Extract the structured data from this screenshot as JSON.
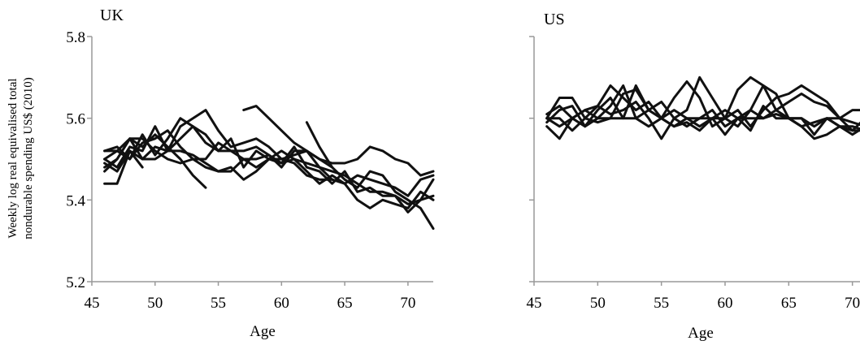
{
  "chart_data": [
    {
      "type": "line",
      "title": "UK",
      "xlabel": "Age",
      "ylabel": [
        "Weekly log real equivalised total",
        "nondurable spending US$ (2010)"
      ],
      "xlim": [
        45,
        72
      ],
      "ylim": [
        5.2,
        5.8
      ],
      "xticks": [
        45,
        50,
        55,
        60,
        65,
        70
      ],
      "yticks": [
        5.2,
        5.4,
        5.6,
        5.8
      ],
      "ytick_labels": [
        "5.2",
        "5.4",
        "5.6",
        "5.8"
      ],
      "grid": false,
      "series": [
        {
          "x": [
            46,
            47,
            48,
            49,
            50,
            51,
            52,
            53,
            54,
            55,
            56,
            57,
            58,
            59,
            60,
            61,
            62,
            63,
            64,
            65,
            66,
            67,
            68,
            69,
            70,
            71,
            72
          ],
          "y": [
            5.52,
            5.53,
            5.5,
            5.56,
            5.51,
            5.55,
            5.6,
            5.58,
            5.54,
            5.52,
            5.52,
            5.5,
            5.48,
            5.5,
            5.52,
            5.5,
            5.47,
            5.44,
            5.46,
            5.44,
            5.4,
            5.38,
            5.4,
            5.39,
            5.38,
            5.42,
            5.4
          ]
        },
        {
          "x": [
            46,
            47,
            48,
            49,
            50,
            51,
            52,
            53,
            54,
            55,
            56,
            57,
            58,
            59,
            60,
            61,
            62,
            63,
            64,
            65,
            66,
            67,
            68,
            69,
            70,
            71,
            72
          ],
          "y": [
            5.5,
            5.48,
            5.53,
            5.52,
            5.58,
            5.52,
            5.58,
            5.6,
            5.62,
            5.57,
            5.53,
            5.54,
            5.55,
            5.53,
            5.5,
            5.51,
            5.52,
            5.5,
            5.48,
            5.45,
            5.43,
            5.47,
            5.46,
            5.42,
            5.4,
            5.38,
            5.33
          ]
        },
        {
          "x": [
            46,
            47,
            48,
            49,
            50,
            51,
            52,
            53,
            54,
            55,
            56,
            57,
            58,
            59,
            60,
            61,
            62,
            63,
            64,
            65,
            66,
            67,
            68,
            69,
            70,
            71,
            72
          ],
          "y": [
            5.47,
            5.5,
            5.55,
            5.5,
            5.53,
            5.52,
            5.55,
            5.58,
            5.56,
            5.52,
            5.55,
            5.48,
            5.52,
            5.5,
            5.49,
            5.53,
            5.48,
            5.47,
            5.44,
            5.47,
            5.42,
            5.43,
            5.41,
            5.41,
            5.37,
            5.4,
            5.45
          ]
        },
        {
          "x": [
            46,
            47,
            48,
            49,
            50,
            51,
            52,
            53,
            54,
            55,
            56,
            57,
            58,
            59,
            60,
            61,
            62,
            63,
            64,
            65,
            66,
            67,
            68,
            69,
            70,
            71,
            72
          ],
          "y": [
            5.5,
            5.52,
            5.5,
            5.54,
            5.55,
            5.57,
            5.53,
            5.5,
            5.5,
            5.54,
            5.52,
            5.52,
            5.53,
            5.51,
            5.48,
            5.52,
            5.52,
            5.5,
            5.49,
            5.49,
            5.5,
            5.53,
            5.52,
            5.5,
            5.49,
            5.46,
            5.47
          ]
        },
        {
          "x": [
            46,
            47,
            48,
            49,
            50,
            51,
            52,
            53,
            54,
            55,
            56,
            57,
            58,
            59,
            60,
            61,
            62,
            63,
            64,
            65,
            66,
            67,
            68,
            69,
            70,
            71,
            72
          ],
          "y": [
            5.49,
            5.47,
            5.52,
            5.5,
            5.5,
            5.52,
            5.52,
            5.51,
            5.49,
            5.47,
            5.48,
            5.45,
            5.47,
            5.5,
            5.5,
            5.49,
            5.46,
            5.45,
            5.45,
            5.44,
            5.46,
            5.45,
            5.44,
            5.43,
            5.41,
            5.45,
            5.46
          ]
        },
        {
          "x": [
            46,
            47,
            48,
            49,
            50,
            51,
            52,
            53,
            54,
            55,
            56,
            57,
            58,
            59,
            60,
            61,
            62,
            63,
            64,
            65,
            66,
            67,
            68,
            69,
            70,
            71,
            72
          ],
          "y": [
            5.48,
            5.5,
            5.55,
            5.55,
            5.52,
            5.5,
            5.49,
            5.5,
            5.48,
            5.47,
            5.47,
            5.5,
            5.5,
            5.51,
            5.49,
            5.5,
            5.49,
            5.48,
            5.47,
            5.46,
            5.44,
            5.42,
            5.42,
            5.41,
            5.39,
            5.4,
            5.41
          ]
        },
        {
          "x": [
            46,
            47,
            48,
            49,
            50,
            51,
            52,
            53,
            54
          ],
          "y": [
            5.52,
            5.52,
            5.55,
            5.53,
            5.56,
            5.53,
            5.5,
            5.46,
            5.43
          ]
        },
        {
          "x": [
            46,
            47,
            48,
            49
          ],
          "y": [
            5.44,
            5.44,
            5.52,
            5.48
          ]
        },
        {
          "x": [
            57,
            58,
            59,
            60,
            61,
            62,
            63,
            64
          ],
          "y": [
            5.62,
            5.63,
            5.6,
            5.57,
            5.54,
            5.52,
            5.48,
            5.45
          ]
        },
        {
          "x": [
            62,
            63,
            64
          ],
          "y": [
            5.59,
            5.53,
            5.48
          ]
        }
      ]
    },
    {
      "type": "line",
      "title": "US",
      "xlabel": "Age",
      "xlim": [
        45,
        72
      ],
      "ylim": [
        5.2,
        5.8
      ],
      "xticks": [
        45,
        50,
        55,
        60,
        65,
        70
      ],
      "yticks": [
        5.2,
        5.4,
        5.6,
        5.8
      ],
      "grid": false,
      "series": [
        {
          "x": [
            46,
            47,
            48,
            49,
            50,
            51,
            52,
            53,
            54,
            55,
            56,
            57,
            58,
            59,
            60,
            61,
            62,
            63,
            64,
            65,
            66,
            67,
            68,
            69,
            70,
            71,
            72
          ],
          "y": [
            5.58,
            5.55,
            5.6,
            5.58,
            5.62,
            5.65,
            5.6,
            5.6,
            5.58,
            5.6,
            5.62,
            5.6,
            5.58,
            5.6,
            5.56,
            5.6,
            5.57,
            5.63,
            5.6,
            5.6,
            5.58,
            5.59,
            5.6,
            5.58,
            5.58,
            5.57,
            5.56
          ]
        },
        {
          "x": [
            46,
            47,
            48,
            49,
            50,
            51,
            52,
            53,
            54,
            55,
            56,
            57,
            58,
            59,
            60,
            61,
            62,
            63,
            64,
            65,
            66,
            67,
            68,
            69,
            70,
            71,
            72
          ],
          "y": [
            5.6,
            5.65,
            5.65,
            5.6,
            5.63,
            5.68,
            5.65,
            5.62,
            5.64,
            5.6,
            5.65,
            5.69,
            5.65,
            5.58,
            5.6,
            5.67,
            5.7,
            5.68,
            5.62,
            5.6,
            5.6,
            5.58,
            5.6,
            5.58,
            5.57,
            5.57,
            5.58
          ]
        },
        {
          "x": [
            46,
            47,
            48,
            49,
            50,
            51,
            52,
            53,
            54,
            55,
            56,
            57,
            58,
            59,
            60,
            61,
            62,
            63,
            64,
            65,
            66,
            67,
            68,
            69,
            70,
            71,
            72
          ],
          "y": [
            5.6,
            5.58,
            5.6,
            5.62,
            5.63,
            5.61,
            5.62,
            5.64,
            5.6,
            5.55,
            5.6,
            5.62,
            5.7,
            5.65,
            5.6,
            5.58,
            5.62,
            5.6,
            5.62,
            5.64,
            5.66,
            5.64,
            5.63,
            5.6,
            5.57,
            5.6,
            5.57
          ]
        },
        {
          "x": [
            46,
            47,
            48,
            49,
            50,
            51,
            52,
            53,
            54,
            55,
            56,
            57,
            58,
            59,
            60,
            61,
            62,
            63,
            64,
            65,
            66,
            67,
            68,
            69,
            70,
            71,
            72
          ],
          "y": [
            5.59,
            5.62,
            5.63,
            5.58,
            5.6,
            5.63,
            5.68,
            5.6,
            5.62,
            5.6,
            5.58,
            5.6,
            5.6,
            5.62,
            5.58,
            5.6,
            5.62,
            5.68,
            5.66,
            5.6,
            5.6,
            5.56,
            5.6,
            5.6,
            5.59,
            5.58,
            5.6
          ]
        },
        {
          "x": [
            46,
            47,
            48,
            49,
            50,
            51,
            52,
            53,
            54,
            55,
            56,
            57,
            58,
            59,
            60,
            61,
            62,
            63,
            64,
            65,
            66,
            67,
            68,
            69,
            70,
            71,
            72
          ],
          "y": [
            5.6,
            5.6,
            5.57,
            5.6,
            5.59,
            5.6,
            5.6,
            5.68,
            5.62,
            5.6,
            5.58,
            5.59,
            5.57,
            5.6,
            5.6,
            5.62,
            5.58,
            5.62,
            5.65,
            5.66,
            5.68,
            5.66,
            5.64,
            5.6,
            5.62,
            5.62,
            5.65
          ]
        },
        {
          "x": [
            46,
            47,
            48,
            49,
            50,
            51,
            52,
            53,
            54,
            55,
            56,
            57,
            58,
            59,
            60,
            61,
            62,
            63,
            64,
            65,
            66,
            67,
            68,
            69,
            70,
            71,
            72
          ],
          "y": [
            5.61,
            5.63,
            5.6,
            5.62,
            5.6,
            5.6,
            5.66,
            5.67,
            5.62,
            5.64,
            5.6,
            5.58,
            5.6,
            5.6,
            5.62,
            5.6,
            5.6,
            5.6,
            5.61,
            5.6,
            5.58,
            5.55,
            5.56,
            5.58,
            5.56,
            5.58,
            5.57
          ]
        }
      ]
    }
  ]
}
